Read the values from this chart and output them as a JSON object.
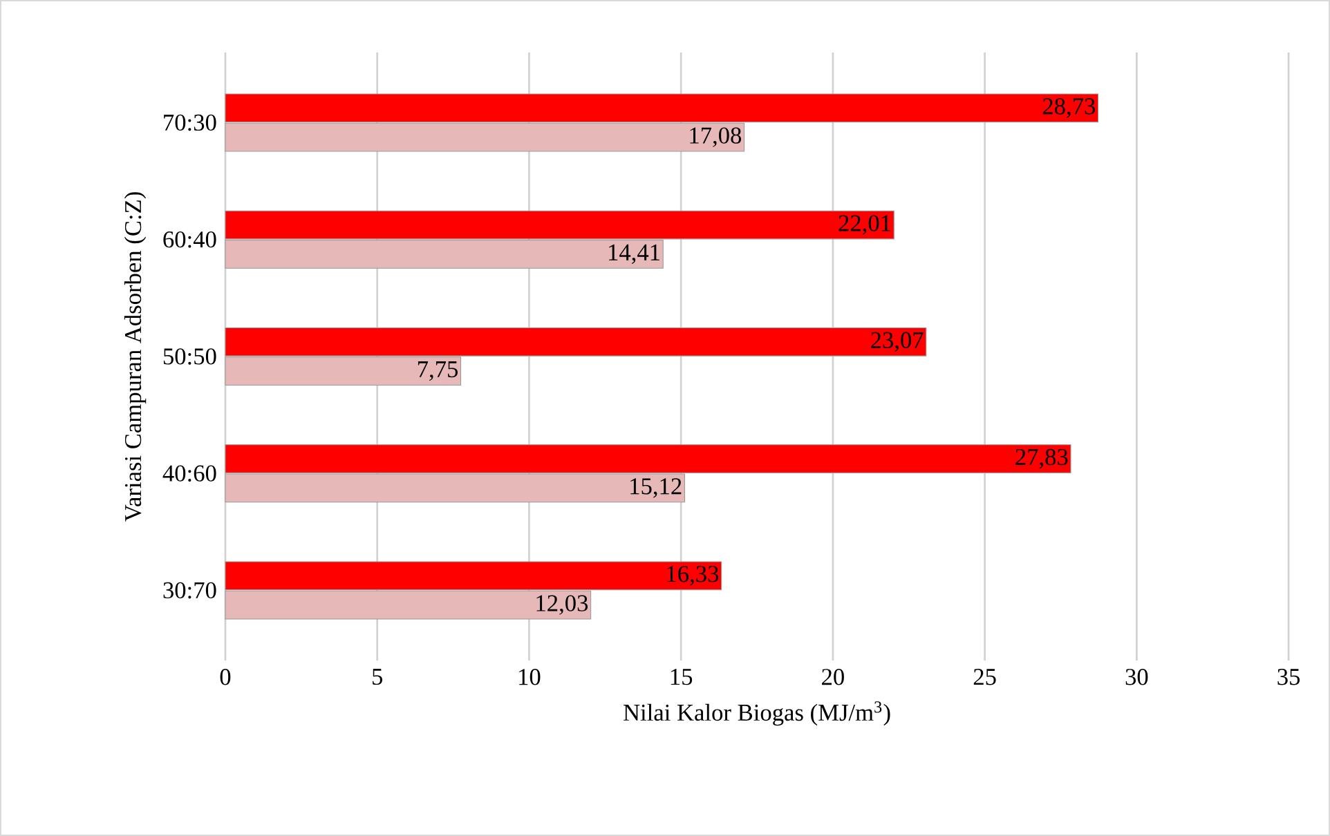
{
  "chart_data": {
    "type": "bar",
    "orientation": "horizontal",
    "xlabel": "Nilai Kalor Biogas (MJ/m$^{3}$)",
    "ylabel": "Variasi Campuran Adsorben (C:Z)",
    "categories": [
      "70:30",
      "60:40",
      "50:50",
      "40:60",
      "30:70"
    ],
    "series": [
      {
        "color": "#ff0000",
        "values": [
          28.73,
          22.01,
          23.07,
          27.83,
          16.33
        ],
        "value_labels": [
          "28,73",
          "22,01",
          "23,07",
          "27,83",
          "16,33"
        ]
      },
      {
        "color": "#e6b8b7",
        "values": [
          17.08,
          14.41,
          7.75,
          15.12,
          12.03
        ],
        "value_labels": [
          "17,08",
          "14,41",
          "7,75",
          "15,12",
          "12,03"
        ]
      }
    ],
    "xlim": [
      0,
      35
    ],
    "xticks": [
      0,
      5,
      10,
      15,
      20,
      25,
      30,
      35
    ],
    "grid": "x"
  }
}
